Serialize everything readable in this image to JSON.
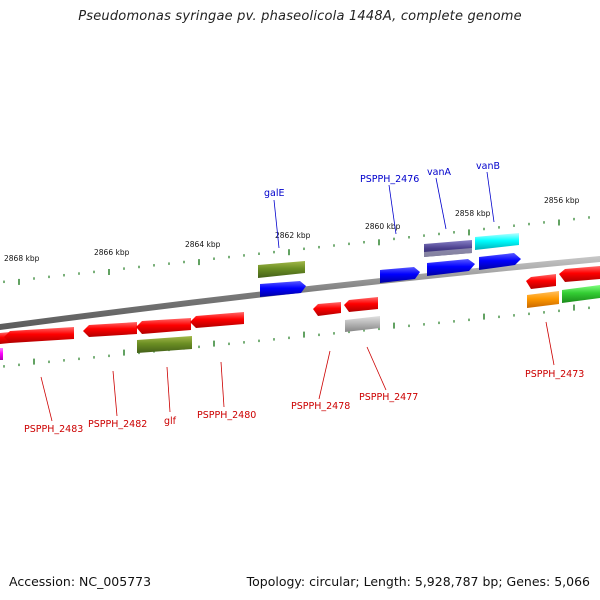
{
  "title": "Pseudomonas syringae pv. phaseolicola 1448A, complete genome",
  "footer": {
    "accession": "Accession: NC_005773",
    "summary": "Topology: circular; Length: 5,928,787 bp; Genes: 5,066"
  },
  "colors": {
    "background": "#ffffff",
    "backbone": "#8a8a8a",
    "tick": "#1f7a1f",
    "forward_label": "#0000cc",
    "reverse_label": "#cc0000"
  },
  "scale_labels": [
    "2868 kbp",
    "2866 kbp",
    "2864 kbp",
    "2862 kbp",
    "2860 kbp",
    "2858 kbp",
    "2856 kbp"
  ],
  "forward_labels": [
    "galE",
    "PSPPH_2476",
    "vanA",
    "vanB"
  ],
  "reverse_labels": [
    "PSPPH_2483",
    "PSPPH_2482",
    "glf",
    "PSPPH_2480",
    "PSPPH_2478",
    "PSPPH_2477",
    "PSPPH_2473"
  ],
  "genes": [
    {
      "strand": "outer",
      "color": "olive",
      "label": "galE"
    },
    {
      "strand": "inner",
      "color": "blue",
      "label": "galE"
    },
    {
      "strand": "inner",
      "color": "blue",
      "label": "PSPPH_2476"
    },
    {
      "strand": "outer",
      "color": "slate-blue",
      "label": "vanA"
    },
    {
      "strand": "inner",
      "color": "blue",
      "label": "vanA"
    },
    {
      "strand": "outer",
      "color": "cyan",
      "label": "vanB"
    },
    {
      "strand": "inner",
      "color": "blue",
      "label": "vanB"
    },
    {
      "strand": "inner",
      "color": "red",
      "label": ""
    },
    {
      "strand": "inner",
      "color": "red",
      "label": ""
    },
    {
      "strand": "inner",
      "color": "red",
      "label": "PSPPH_2483"
    },
    {
      "strand": "inner",
      "color": "red",
      "label": "PSPPH_2482"
    },
    {
      "strand": "inner",
      "color": "red",
      "label": ""
    },
    {
      "strand": "inner",
      "color": "olive",
      "label": "glf"
    },
    {
      "strand": "inner",
      "color": "red",
      "label": "PSPPH_2480"
    },
    {
      "strand": "inner",
      "color": "red",
      "label": "PSPPH_2478"
    },
    {
      "strand": "inner",
      "color": "red",
      "label": ""
    },
    {
      "strand": "inner",
      "color": "gray",
      "label": "PSPPH_2477"
    },
    {
      "strand": "inner",
      "color": "red",
      "label": "PSPPH_2473"
    },
    {
      "strand": "inner",
      "color": "red",
      "label": ""
    },
    {
      "strand": "inner",
      "color": "orange",
      "label": ""
    },
    {
      "strand": "inner",
      "color": "green",
      "label": ""
    },
    {
      "strand": "inner",
      "color": "magenta",
      "label": ""
    }
  ]
}
